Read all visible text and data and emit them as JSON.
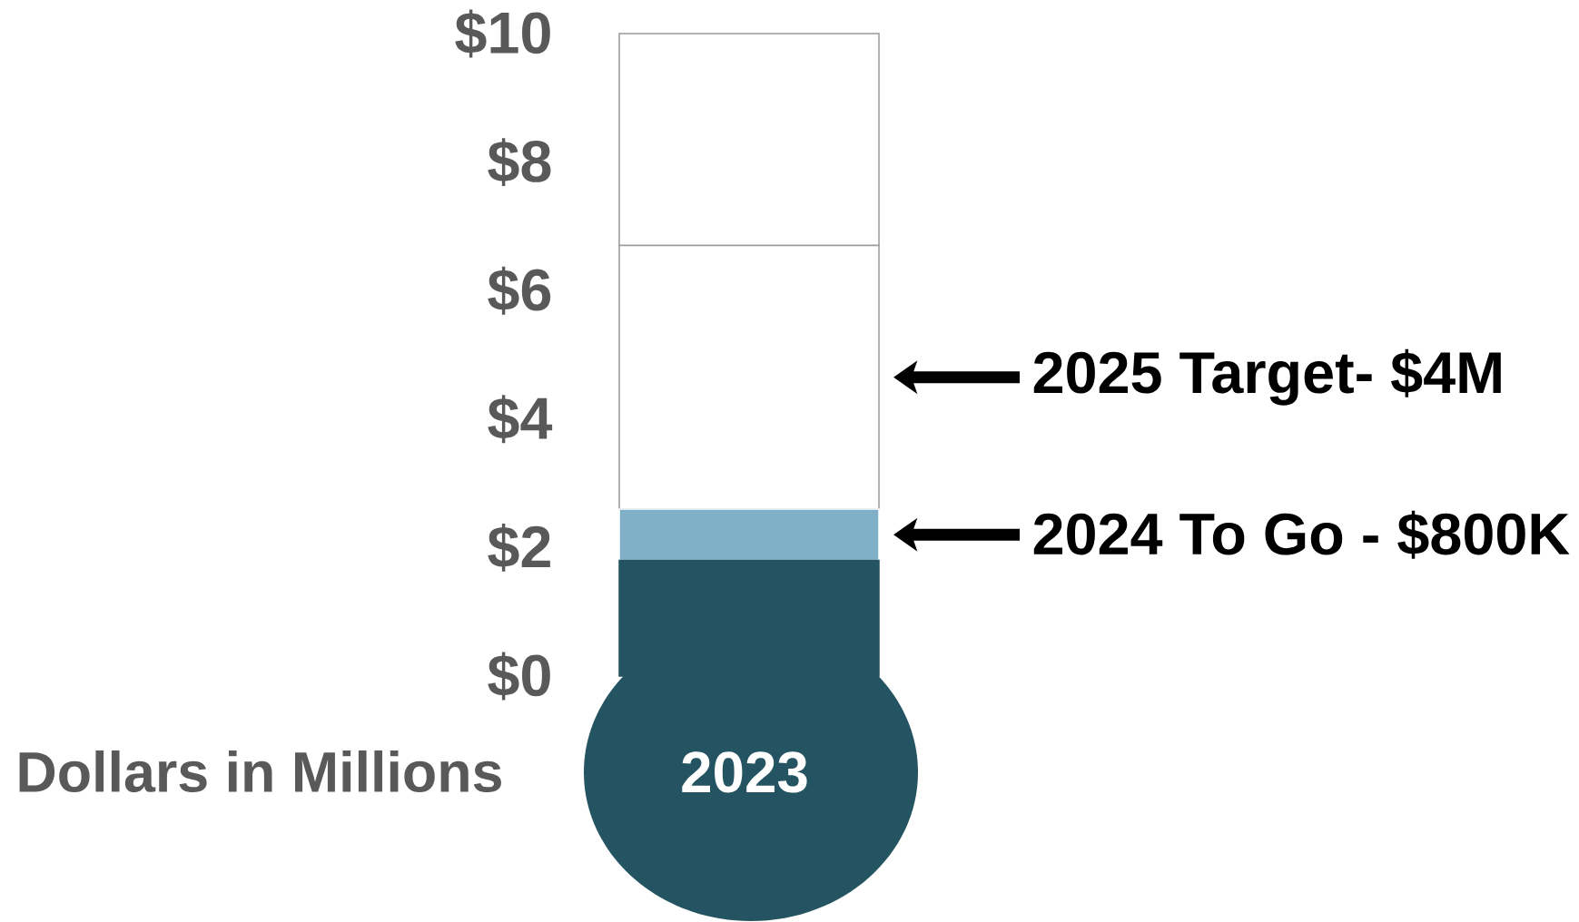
{
  "chart_data": {
    "type": "bar",
    "stacked": true,
    "categories": [
      null
    ],
    "series": [
      {
        "color": "#245461",
        "values": [
          1.8
        ]
      },
      {
        "color": "#7fb0c8",
        "values": [
          0.8
        ]
      },
      {
        "color": "#ffffff",
        "values": [
          4.1
        ]
      },
      {
        "color": "#ffffff",
        "values": [
          3.3
        ]
      }
    ],
    "annotations": [
      "2023",
      "2024 To Go - $800K",
      "2025 Target- $4M"
    ],
    "ylim": [
      0,
      10
    ],
    "yticks": [
      {
        "value": 0,
        "label": "$0"
      },
      {
        "value": 2,
        "label": "$2"
      },
      {
        "value": 4,
        "label": "$4"
      },
      {
        "value": 6,
        "label": "$6"
      },
      {
        "value": 8,
        "label": "$8"
      },
      {
        "value": 10,
        "label": "$10"
      }
    ],
    "ylabel": "Dollars in Millions"
  }
}
